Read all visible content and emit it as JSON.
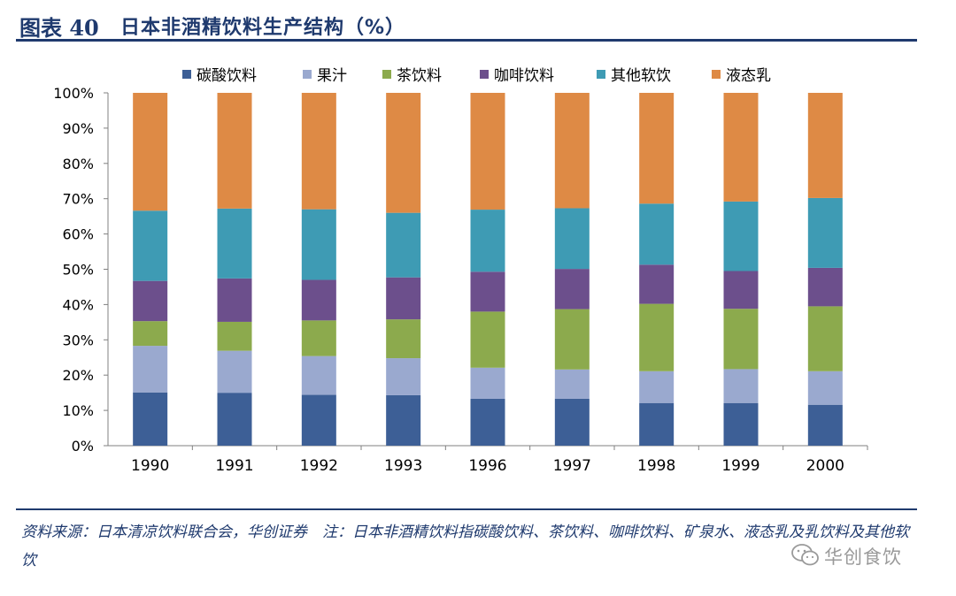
{
  "header": {
    "label": "图表 40",
    "title": "日本非酒精饮料生产结构（%）"
  },
  "footer": {
    "text": "资料来源：日本清凉饮料联合会，华创证券　注：日本非酒精饮料指碳酸饮料、茶饮料、咖啡饮料、矿泉水、液态乳及乳饮料及其他软饮"
  },
  "watermark": {
    "text": "华创食饮",
    "icon": "wechat-icon"
  },
  "chart_data": {
    "type": "bar",
    "stacked": true,
    "title": "",
    "xlabel": "",
    "ylabel": "",
    "ylim": [
      0,
      100
    ],
    "yticks": [
      "0%",
      "10%",
      "20%",
      "30%",
      "40%",
      "50%",
      "60%",
      "70%",
      "80%",
      "90%",
      "100%"
    ],
    "legend_position": "top-center",
    "categories": [
      "1990",
      "1991",
      "1992",
      "1993",
      "1996",
      "1997",
      "1998",
      "1999",
      "2000"
    ],
    "series": [
      {
        "name": "碳酸饮料",
        "color": "#3d5f96",
        "values": [
          15.1,
          15.0,
          14.4,
          14.3,
          13.3,
          13.3,
          12.1,
          12.1,
          11.6
        ]
      },
      {
        "name": "果汁",
        "color": "#9aa9cf",
        "values": [
          13.2,
          11.9,
          11.0,
          10.5,
          8.8,
          8.3,
          9.0,
          9.6,
          9.5
        ]
      },
      {
        "name": "茶饮料",
        "color": "#8caa4d",
        "values": [
          7.0,
          8.2,
          10.1,
          11.0,
          15.9,
          17.1,
          19.1,
          17.1,
          18.4
        ]
      },
      {
        "name": "咖啡饮料",
        "color": "#6c4f8c",
        "values": [
          11.4,
          12.3,
          11.5,
          11.9,
          11.3,
          11.4,
          11.1,
          10.7,
          10.9
        ]
      },
      {
        "name": "其他软饮",
        "color": "#3e9bb4",
        "values": [
          19.9,
          19.8,
          20.0,
          18.3,
          17.6,
          17.2,
          17.3,
          19.7,
          19.8
        ]
      },
      {
        "name": "液态乳",
        "color": "#de8a45",
        "values": [
          33.4,
          32.8,
          33.0,
          34.0,
          33.1,
          32.7,
          31.4,
          30.8,
          29.8
        ]
      }
    ]
  }
}
